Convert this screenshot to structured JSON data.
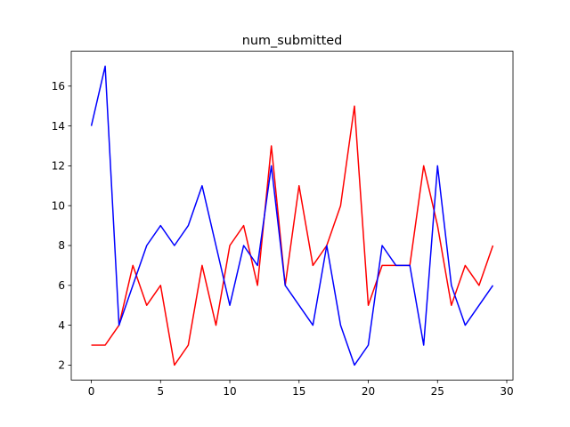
{
  "chart_data": {
    "type": "line",
    "title": "num_submitted",
    "xlabel": "",
    "ylabel": "",
    "xlim": [
      -1.45,
      30.45
    ],
    "ylim": [
      1.25,
      17.75
    ],
    "xticks": [
      0,
      5,
      10,
      15,
      20,
      25,
      30
    ],
    "yticks": [
      2,
      4,
      6,
      8,
      10,
      12,
      14,
      16
    ],
    "grid": false,
    "x": [
      0,
      1,
      2,
      3,
      4,
      5,
      6,
      7,
      8,
      9,
      10,
      11,
      12,
      13,
      14,
      15,
      16,
      17,
      18,
      19,
      20,
      21,
      22,
      23,
      24,
      25,
      26,
      27,
      28,
      29
    ],
    "series": [
      {
        "color": "#ff0000",
        "values": [
          3,
          3,
          4,
          7,
          5,
          6,
          2,
          3,
          7,
          4,
          8,
          9,
          6,
          13,
          6,
          11,
          7,
          8,
          10,
          15,
          5,
          7,
          7,
          7,
          12,
          9,
          5,
          7,
          6,
          8
        ]
      },
      {
        "color": "#0000ff",
        "values": [
          14,
          17,
          4,
          6,
          8,
          9,
          8,
          9,
          11,
          8,
          5,
          8,
          7,
          12,
          6,
          5,
          4,
          8,
          4,
          2,
          3,
          8,
          7,
          7,
          3,
          12,
          6,
          4,
          5,
          6
        ]
      }
    ]
  }
}
